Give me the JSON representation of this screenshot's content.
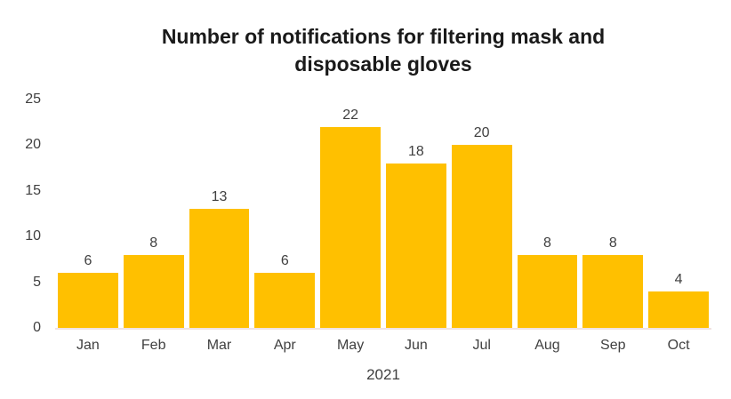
{
  "title": {
    "line1": "Number of notifications for filtering mask and",
    "line2": "disposable gloves"
  },
  "chart_data": {
    "type": "bar",
    "title": "Number of notifications for filtering mask and disposable gloves",
    "categories": [
      "Jan",
      "Feb",
      "Mar",
      "Apr",
      "May",
      "Jun",
      "Jul",
      "Aug",
      "Sep",
      "Oct"
    ],
    "values": [
      6,
      8,
      13,
      6,
      22,
      18,
      20,
      8,
      8,
      4
    ],
    "data_labels": [
      6,
      8,
      13,
      6,
      22,
      18,
      20,
      8,
      8,
      4
    ],
    "xlabel": "2021",
    "ylabel": "",
    "ylim": [
      0,
      25
    ],
    "yticks": [
      0,
      5,
      10,
      15,
      20,
      25
    ],
    "grid": false,
    "legend": "none",
    "colors": {
      "bar": "#FFC000",
      "axis_label": "#404040",
      "title": "#1a1a1a",
      "axis_line": "#f0e3e2"
    }
  }
}
